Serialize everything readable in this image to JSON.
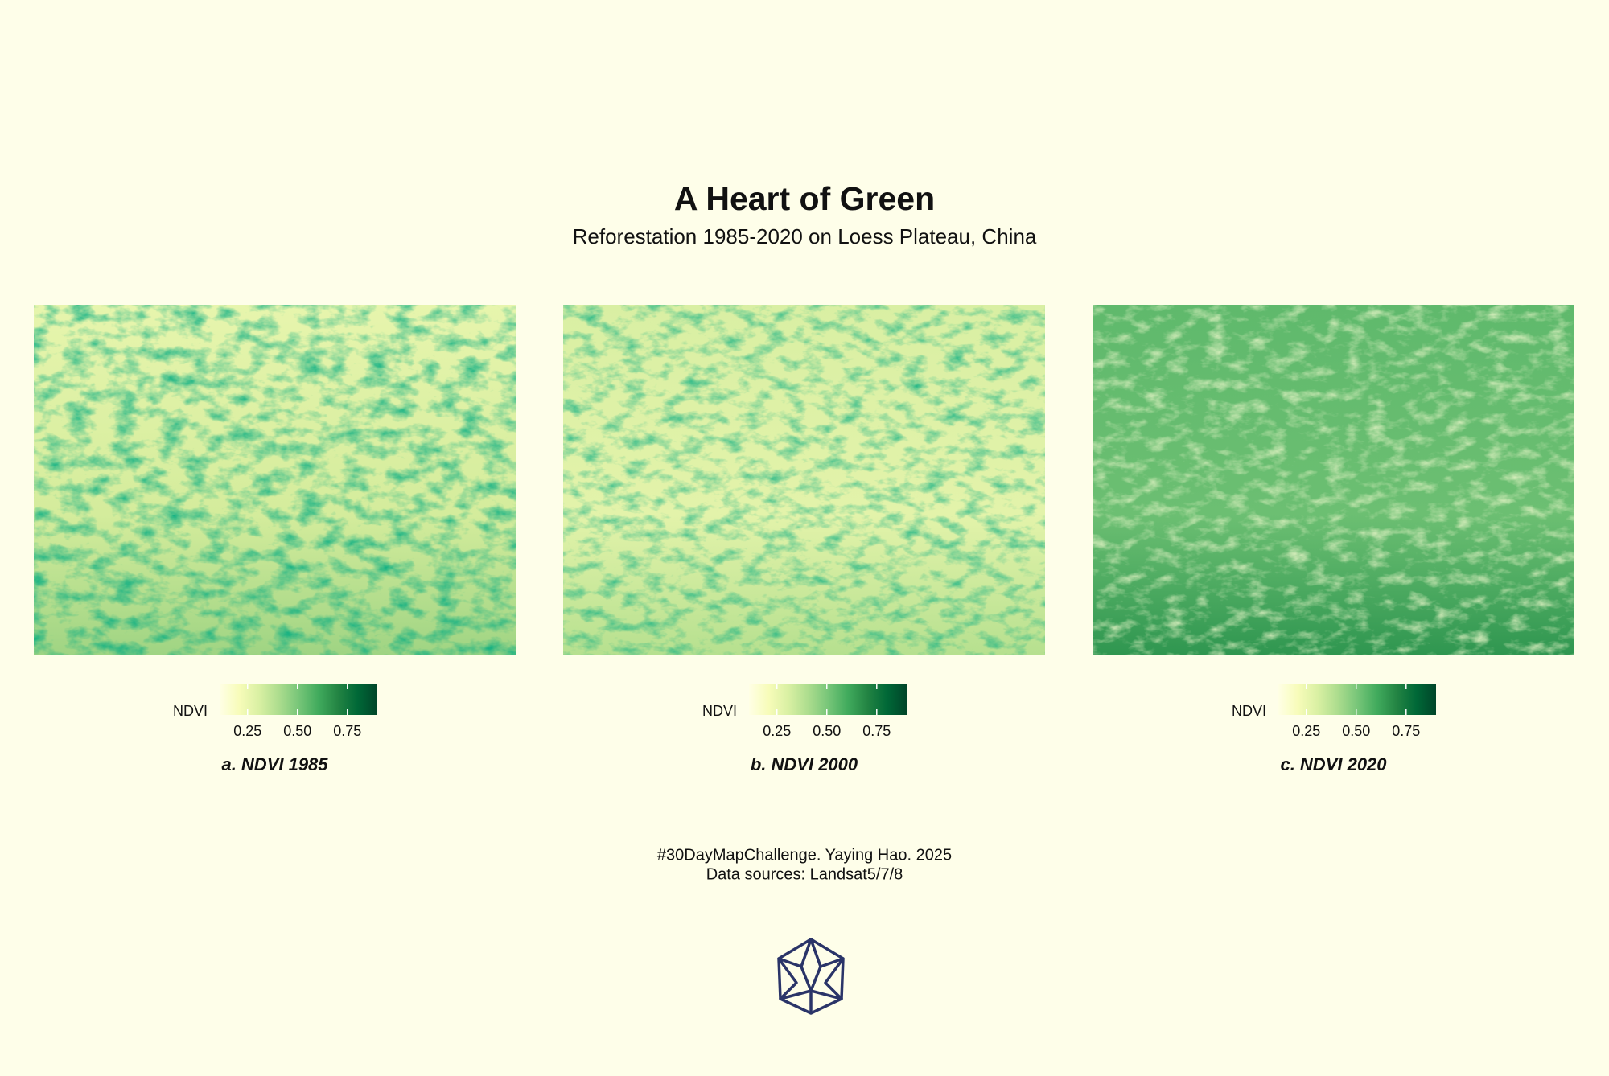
{
  "header": {
    "title": "A Heart of Green",
    "subtitle": "Reforestation 1985-2020 on Loess Plateau, China"
  },
  "palette": [
    "#ffffe5",
    "#f7fcb9",
    "#d9f0a3",
    "#addd8e",
    "#78c679",
    "#41ab5d",
    "#238443",
    "#006837",
    "#004529"
  ],
  "panels": [
    {
      "caption": "a. NDVI 1985",
      "legend_title": "NDVI",
      "lim": [
        0.11,
        0.9
      ],
      "ticks": [
        0.25,
        {
          "value": 0.5,
          "label": "0.50"
        },
        0.75
      ]
    },
    {
      "caption": "b. NDVI 2000",
      "legend_title": "NDVI",
      "lim": [
        0.11,
        0.9
      ],
      "ticks": [
        0.25,
        {
          "value": 0.5,
          "label": "0.50"
        },
        0.75
      ]
    },
    {
      "caption": "c. NDVI 2020",
      "legend_title": "NDVI",
      "lim": [
        0.11,
        0.9
      ],
      "ticks": [
        0.25,
        {
          "value": 0.5,
          "label": "0.50"
        },
        0.75
      ]
    }
  ],
  "footer": {
    "lines": [
      "#30DayMapChallenge. Yaying Hao. 2025",
      "Data sources: Landsat5/7/8"
    ]
  }
}
